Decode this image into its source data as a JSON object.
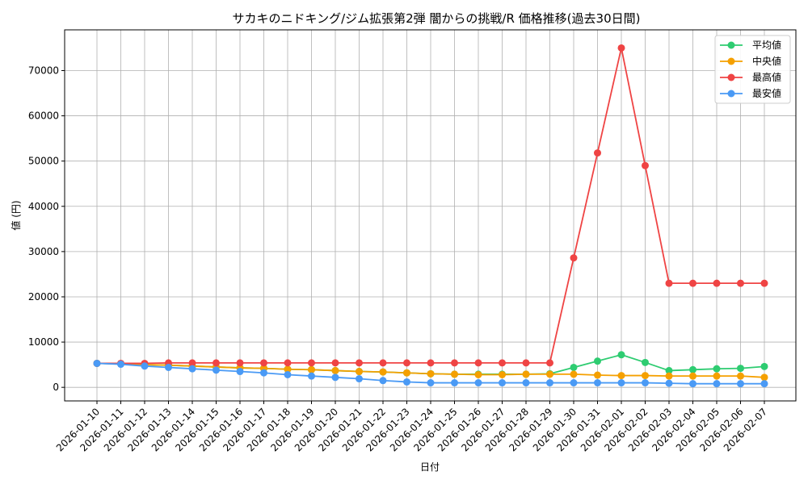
{
  "chart_data": {
    "type": "line",
    "title": "サカキのニドキング/ジム拡張第2弾 闇からの挑戦/R 価格推移(過去30日間)",
    "xlabel": "日付",
    "ylabel": "値 (円)",
    "ylim": [
      -3000,
      79000
    ],
    "yticks": [
      0,
      10000,
      20000,
      30000,
      40000,
      50000,
      60000,
      70000
    ],
    "grid": true,
    "legend_position": "top-right",
    "categories": [
      "2026-01-10",
      "2026-01-11",
      "2026-01-12",
      "2026-01-13",
      "2026-01-14",
      "2026-01-15",
      "2026-01-16",
      "2026-01-17",
      "2026-01-18",
      "2026-01-19",
      "2026-01-20",
      "2026-01-21",
      "2026-01-22",
      "2026-01-23",
      "2026-01-24",
      "2026-01-25",
      "2026-01-26",
      "2026-01-27",
      "2026-01-28",
      "2026-01-29",
      "2026-01-30",
      "2026-01-31",
      "2026-02-01",
      "2026-02-02",
      "2026-02-03",
      "2026-02-04",
      "2026-02-05",
      "2026-02-06",
      "2026-02-07"
    ],
    "series": [
      {
        "name": "平均値",
        "color": "#2ecc71",
        "values": [
          5300,
          5200,
          5000,
          4900,
          4700,
          4500,
          4300,
          4200,
          4000,
          3900,
          3700,
          3500,
          3400,
          3200,
          3000,
          2900,
          2900,
          2900,
          2900,
          3000,
          4400,
          5800,
          7200,
          5500,
          3700,
          3900,
          4100,
          4200,
          4600
        ]
      },
      {
        "name": "中央値",
        "color": "#f5a000",
        "values": [
          5300,
          5200,
          5000,
          4900,
          4700,
          4500,
          4300,
          4200,
          4000,
          3900,
          3700,
          3500,
          3400,
          3200,
          3000,
          2900,
          2800,
          2800,
          2900,
          2900,
          2900,
          2700,
          2600,
          2600,
          2500,
          2500,
          2500,
          2500,
          2200
        ]
      },
      {
        "name": "最高値",
        "color": "#ef4444",
        "values": [
          5300,
          5300,
          5300,
          5400,
          5400,
          5400,
          5400,
          5400,
          5400,
          5400,
          5400,
          5400,
          5400,
          5400,
          5400,
          5400,
          5400,
          5400,
          5400,
          5400,
          28600,
          51800,
          75000,
          49000,
          23000,
          23000,
          23000,
          23000,
          23000
        ]
      },
      {
        "name": "最安値",
        "color": "#4a9af5",
        "values": [
          5300,
          5100,
          4700,
          4400,
          4100,
          3800,
          3500,
          3200,
          2800,
          2500,
          2200,
          1900,
          1500,
          1200,
          1000,
          1000,
          1000,
          1000,
          1000,
          1000,
          1000,
          1000,
          1000,
          1000,
          900,
          800,
          800,
          800,
          800
        ]
      }
    ]
  }
}
